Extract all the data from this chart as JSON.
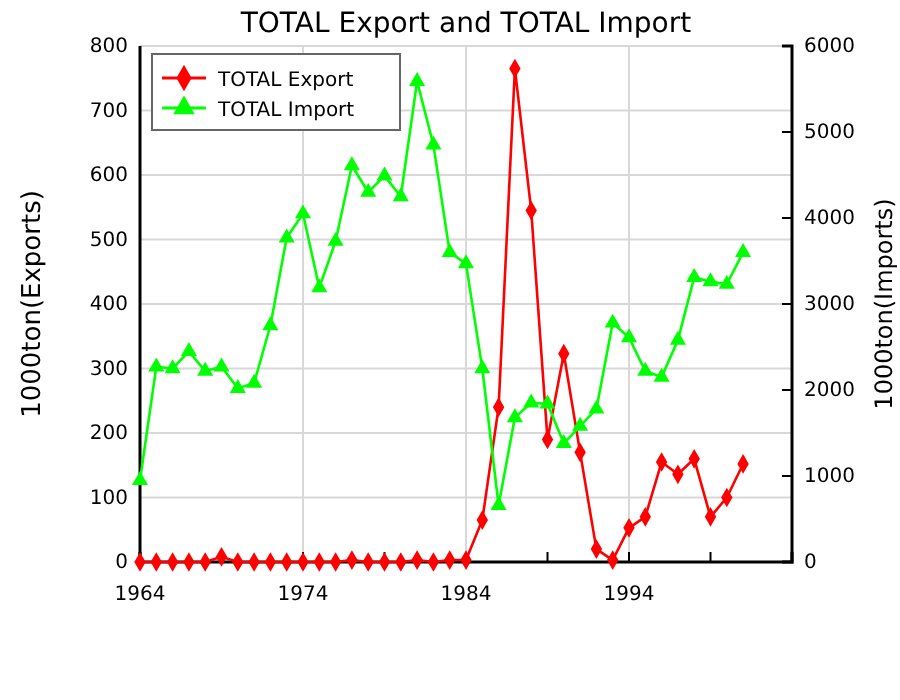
{
  "chart_data": {
    "type": "line",
    "title": "TOTAL Export and TOTAL Import",
    "ylabel": "1000ton(Exports)",
    "y2label": "1000ton(Imports)",
    "x": [
      1964,
      1965,
      1966,
      1967,
      1968,
      1969,
      1970,
      1971,
      1972,
      1973,
      1974,
      1975,
      1976,
      1977,
      1978,
      1979,
      1980,
      1981,
      1982,
      1983,
      1984,
      1985,
      1986,
      1987,
      1988,
      1989,
      1990,
      1991,
      1992,
      1993,
      1994,
      1995,
      1996,
      1997,
      1998,
      1999,
      2000,
      2001
    ],
    "series": [
      {
        "name": "TOTAL Export",
        "color": "#ff0000",
        "marker": "diamond",
        "values": [
          0,
          0,
          0,
          0,
          0,
          8,
          0,
          0,
          0,
          0,
          0,
          0,
          0,
          3,
          0,
          0,
          0,
          3,
          0,
          3,
          3,
          65,
          240,
          765,
          545,
          190,
          323,
          170,
          20,
          3,
          53,
          70,
          155,
          136,
          160,
          70,
          100,
          152
        ]
      },
      {
        "name": "TOTAL Import",
        "color": "#00ff00",
        "marker": "triangle",
        "axis": "y2",
        "values": [
          950,
          2270,
          2250,
          2450,
          2220,
          2270,
          2020,
          2080,
          2750,
          3770,
          4050,
          3190,
          3730,
          4610,
          4300,
          4490,
          4250,
          5590,
          4850,
          3600,
          3470,
          2250,
          660,
          1680,
          1850,
          1840,
          1380,
          1580,
          1780,
          2780,
          2610,
          2220,
          2150,
          2580,
          3310,
          3260,
          3230,
          3600
        ]
      }
    ],
    "xlim": [
      1964,
      2004
    ],
    "xticks": [
      1964,
      {
        "value": 1969,
        "label": null
      },
      1974,
      {
        "value": 1979,
        "label": null
      },
      1984,
      {
        "value": 1989,
        "label": null
      },
      1994,
      {
        "value": 1999,
        "label": null
      }
    ],
    "ylim": [
      0,
      800
    ],
    "yticks": [
      0,
      100,
      200,
      300,
      400,
      500,
      600,
      700,
      800
    ],
    "y2lim": [
      0,
      6000
    ],
    "y2ticks": [
      0,
      1000,
      2000,
      3000,
      4000,
      5000,
      6000
    ],
    "grid": true,
    "legend": "top left",
    "line_style": "solid"
  }
}
